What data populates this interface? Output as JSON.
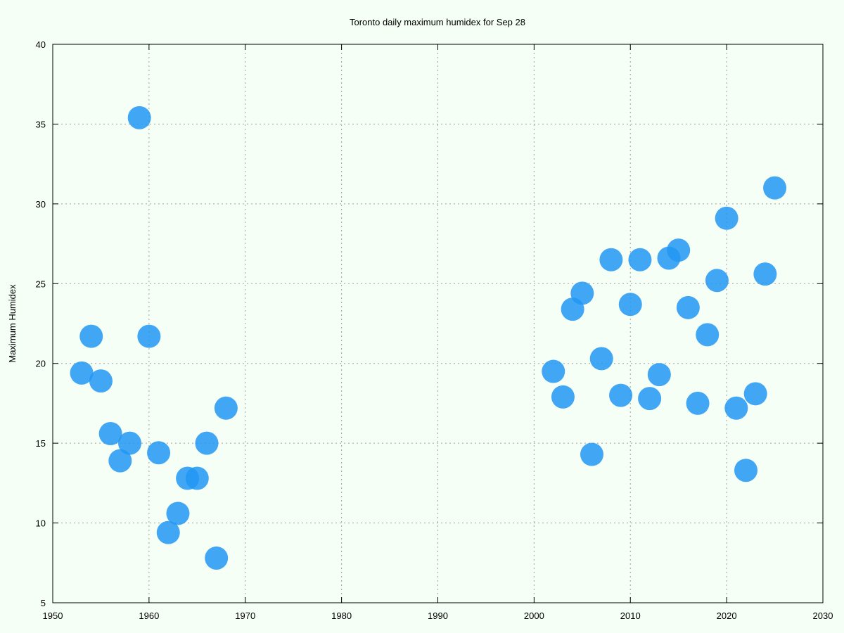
{
  "chart_data": {
    "type": "scatter",
    "title": "Toronto daily maximum humidex for Sep 28",
    "xlabel": "",
    "ylabel": "Maximum Humidex",
    "xlim": [
      1950,
      2030
    ],
    "ylim": [
      5,
      40
    ],
    "xticks": [
      1950,
      1960,
      1970,
      1980,
      1990,
      2000,
      2010,
      2020,
      2030
    ],
    "yticks": [
      5,
      10,
      15,
      20,
      25,
      30,
      35,
      40
    ],
    "grid": true,
    "background": "#f5fff5",
    "marker_color": "#2196f3",
    "points": [
      {
        "x": 1953,
        "y": 19.4
      },
      {
        "x": 1954,
        "y": 21.7
      },
      {
        "x": 1955,
        "y": 18.9
      },
      {
        "x": 1956,
        "y": 15.6
      },
      {
        "x": 1957,
        "y": 13.9
      },
      {
        "x": 1958,
        "y": 15.0
      },
      {
        "x": 1959,
        "y": 35.4
      },
      {
        "x": 1960,
        "y": 21.7
      },
      {
        "x": 1961,
        "y": 14.4
      },
      {
        "x": 1962,
        "y": 9.4
      },
      {
        "x": 1963,
        "y": 10.6
      },
      {
        "x": 1964,
        "y": 12.8
      },
      {
        "x": 1965,
        "y": 12.8
      },
      {
        "x": 1966,
        "y": 15.0
      },
      {
        "x": 1967,
        "y": 7.8
      },
      {
        "x": 1968,
        "y": 17.2
      },
      {
        "x": 2002,
        "y": 19.5
      },
      {
        "x": 2003,
        "y": 17.9
      },
      {
        "x": 2004,
        "y": 23.4
      },
      {
        "x": 2005,
        "y": 24.4
      },
      {
        "x": 2006,
        "y": 14.3
      },
      {
        "x": 2007,
        "y": 20.3
      },
      {
        "x": 2008,
        "y": 26.5
      },
      {
        "x": 2009,
        "y": 18.0
      },
      {
        "x": 2010,
        "y": 23.7
      },
      {
        "x": 2011,
        "y": 26.5
      },
      {
        "x": 2012,
        "y": 17.8
      },
      {
        "x": 2013,
        "y": 19.3
      },
      {
        "x": 2014,
        "y": 26.6
      },
      {
        "x": 2015,
        "y": 27.1
      },
      {
        "x": 2016,
        "y": 23.5
      },
      {
        "x": 2017,
        "y": 17.5
      },
      {
        "x": 2018,
        "y": 21.8
      },
      {
        "x": 2019,
        "y": 25.2
      },
      {
        "x": 2020,
        "y": 29.1
      },
      {
        "x": 2021,
        "y": 17.2
      },
      {
        "x": 2022,
        "y": 13.3
      },
      {
        "x": 2023,
        "y": 18.1
      },
      {
        "x": 2024,
        "y": 25.6
      },
      {
        "x": 2025,
        "y": 31.0
      }
    ]
  }
}
